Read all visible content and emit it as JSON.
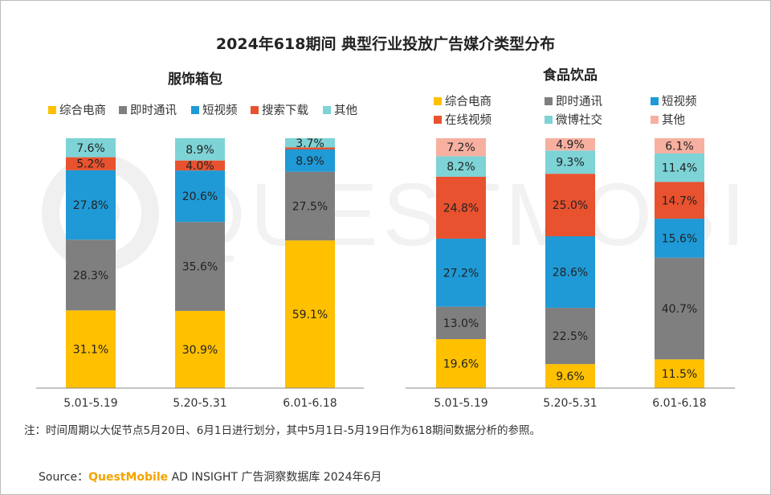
{
  "title": "2024年618期间 典型行业投放广告媒介类型分布",
  "note": "注：时间周期以大促节点5月20日、6月1日进行划分，其中5月1日-5月19日作为618期间数据分析的参照。",
  "source": {
    "label": "Source：",
    "brand": "QuestMobile",
    "rest": " AD INSIGHT 广告洞察数据库 2024年6月"
  },
  "watermark": "QUESTMOBILE",
  "chart_data": [
    {
      "type": "bar",
      "stacked": true,
      "title": "服饰箱包",
      "categories": [
        "5.01-5.19",
        "5.20-5.31",
        "6.01-6.18"
      ],
      "ylim": [
        0,
        100
      ],
      "legend_position": "top",
      "series": [
        {
          "name": "综合电商",
          "color": "#ffc000",
          "values": [
            31.1,
            30.9,
            59.1
          ]
        },
        {
          "name": "即时通讯",
          "color": "#7f7f7f",
          "values": [
            28.3,
            35.6,
            27.5
          ]
        },
        {
          "name": "短视频",
          "color": "#1f9ad6",
          "values": [
            27.8,
            20.6,
            8.9
          ]
        },
        {
          "name": "搜索下载",
          "color": "#e8522f",
          "values": [
            5.2,
            4.0,
            0.8
          ]
        },
        {
          "name": "其他",
          "color": "#7dd3d6",
          "values": [
            7.6,
            8.9,
            3.7
          ]
        }
      ],
      "labels": [
        [
          "31.1%",
          "30.9%",
          "59.1%"
        ],
        [
          "28.3%",
          "35.6%",
          "27.5%"
        ],
        [
          "27.8%",
          "20.6%",
          "8.9%"
        ],
        [
          "5.2%",
          "4.0%",
          ""
        ],
        [
          "7.6%",
          "8.9%",
          "3.7%"
        ]
      ]
    },
    {
      "type": "bar",
      "stacked": true,
      "title": "食品饮品",
      "categories": [
        "5.01-5.19",
        "5.20-5.31",
        "6.01-6.18"
      ],
      "ylim": [
        0,
        100
      ],
      "legend_position": "top",
      "series": [
        {
          "name": "综合电商",
          "color": "#ffc000",
          "values": [
            19.6,
            9.6,
            11.5
          ]
        },
        {
          "name": "即时通讯",
          "color": "#7f7f7f",
          "values": [
            13.0,
            22.5,
            40.7
          ]
        },
        {
          "name": "短视频",
          "color": "#1f9ad6",
          "values": [
            27.2,
            28.6,
            15.6
          ]
        },
        {
          "name": "在线视频",
          "color": "#e8522f",
          "values": [
            24.8,
            25.0,
            14.7
          ]
        },
        {
          "name": "微博社交",
          "color": "#7dd3d6",
          "values": [
            8.2,
            9.3,
            11.4
          ]
        },
        {
          "name": "其他",
          "color": "#f7b0a0",
          "values": [
            7.2,
            4.9,
            6.1
          ]
        }
      ],
      "labels": [
        [
          "19.6%",
          "9.6%",
          "11.5%"
        ],
        [
          "13.0%",
          "22.5%",
          "40.7%"
        ],
        [
          "27.2%",
          "28.6%",
          "15.6%"
        ],
        [
          "24.8%",
          "25.0%",
          "14.7%"
        ],
        [
          "8.2%",
          "9.3%",
          "11.4%"
        ],
        [
          "7.2%",
          "4.9%",
          "6.1%"
        ]
      ]
    }
  ]
}
